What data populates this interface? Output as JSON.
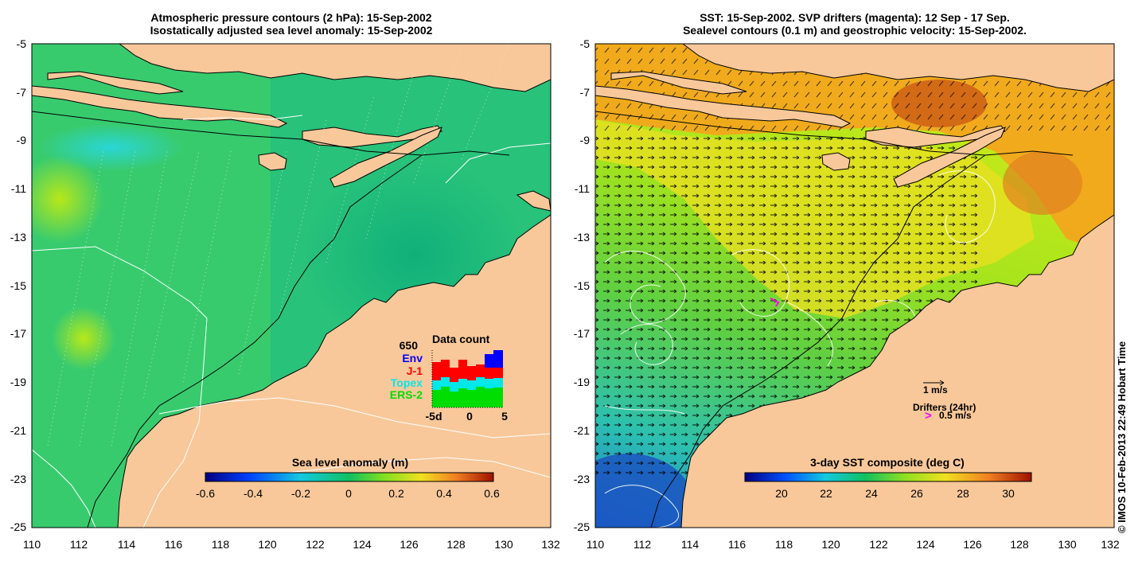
{
  "left_panel": {
    "title_line1": "Atmospheric pressure contours (2 hPa): 15-Sep-2002",
    "title_line2": "Isostatically adjusted sea level anomaly: 15-Sep-2002",
    "colorbar": {
      "title": "Sea level anomaly (m)",
      "ticks": [
        "-0.6",
        "-0.4",
        "-0.2",
        "0",
        "0.2",
        "0.4",
        "0.6"
      ]
    },
    "data_count": {
      "title": "Data count",
      "max_label": "650",
      "legend": [
        {
          "name": "Env",
          "color": "#0000ff"
        },
        {
          "name": "J-1",
          "color": "#ff0000"
        },
        {
          "name": "Topex",
          "color": "#00e8e8"
        },
        {
          "name": "ERS-2",
          "color": "#00dd00"
        }
      ],
      "x_ticks": [
        "-5d",
        "0",
        "5"
      ]
    }
  },
  "right_panel": {
    "title_line1": "SST: 15-Sep-2002. SVP drifters (magenta): 12 Sep - 17 Sep.",
    "title_line2": "Sealevel contours (0.1 m) and geostrophic velocity: 15-Sep-2002.",
    "velocity_scale_label": "1 m/s",
    "drifters_label": "Drifters (24hr)",
    "drifter_scale_label": "0.5 m/s",
    "colorbar": {
      "title": "3-day SST composite (deg C)",
      "ticks": [
        "20",
        "22",
        "24",
        "26",
        "28",
        "30"
      ]
    }
  },
  "axes": {
    "y_ticks": [
      "-5",
      "-7",
      "-9",
      "-11",
      "-13",
      "-15",
      "-17",
      "-19",
      "-21",
      "-23",
      "-25"
    ],
    "x_ticks": [
      "110",
      "112",
      "114",
      "116",
      "118",
      "120",
      "122",
      "124",
      "126",
      "128",
      "130",
      "132"
    ]
  },
  "credit": "© IMOS 10-Feb-2013 22:49 Hobart Time",
  "colors": {
    "land": "#f8c89a",
    "sea_anomaly": "#1db97a",
    "sst_warm": "#f0a020",
    "sst_mid": "#9ee21a",
    "sst_cool": "#27b7c7",
    "drifter": "#ff00ff"
  }
}
